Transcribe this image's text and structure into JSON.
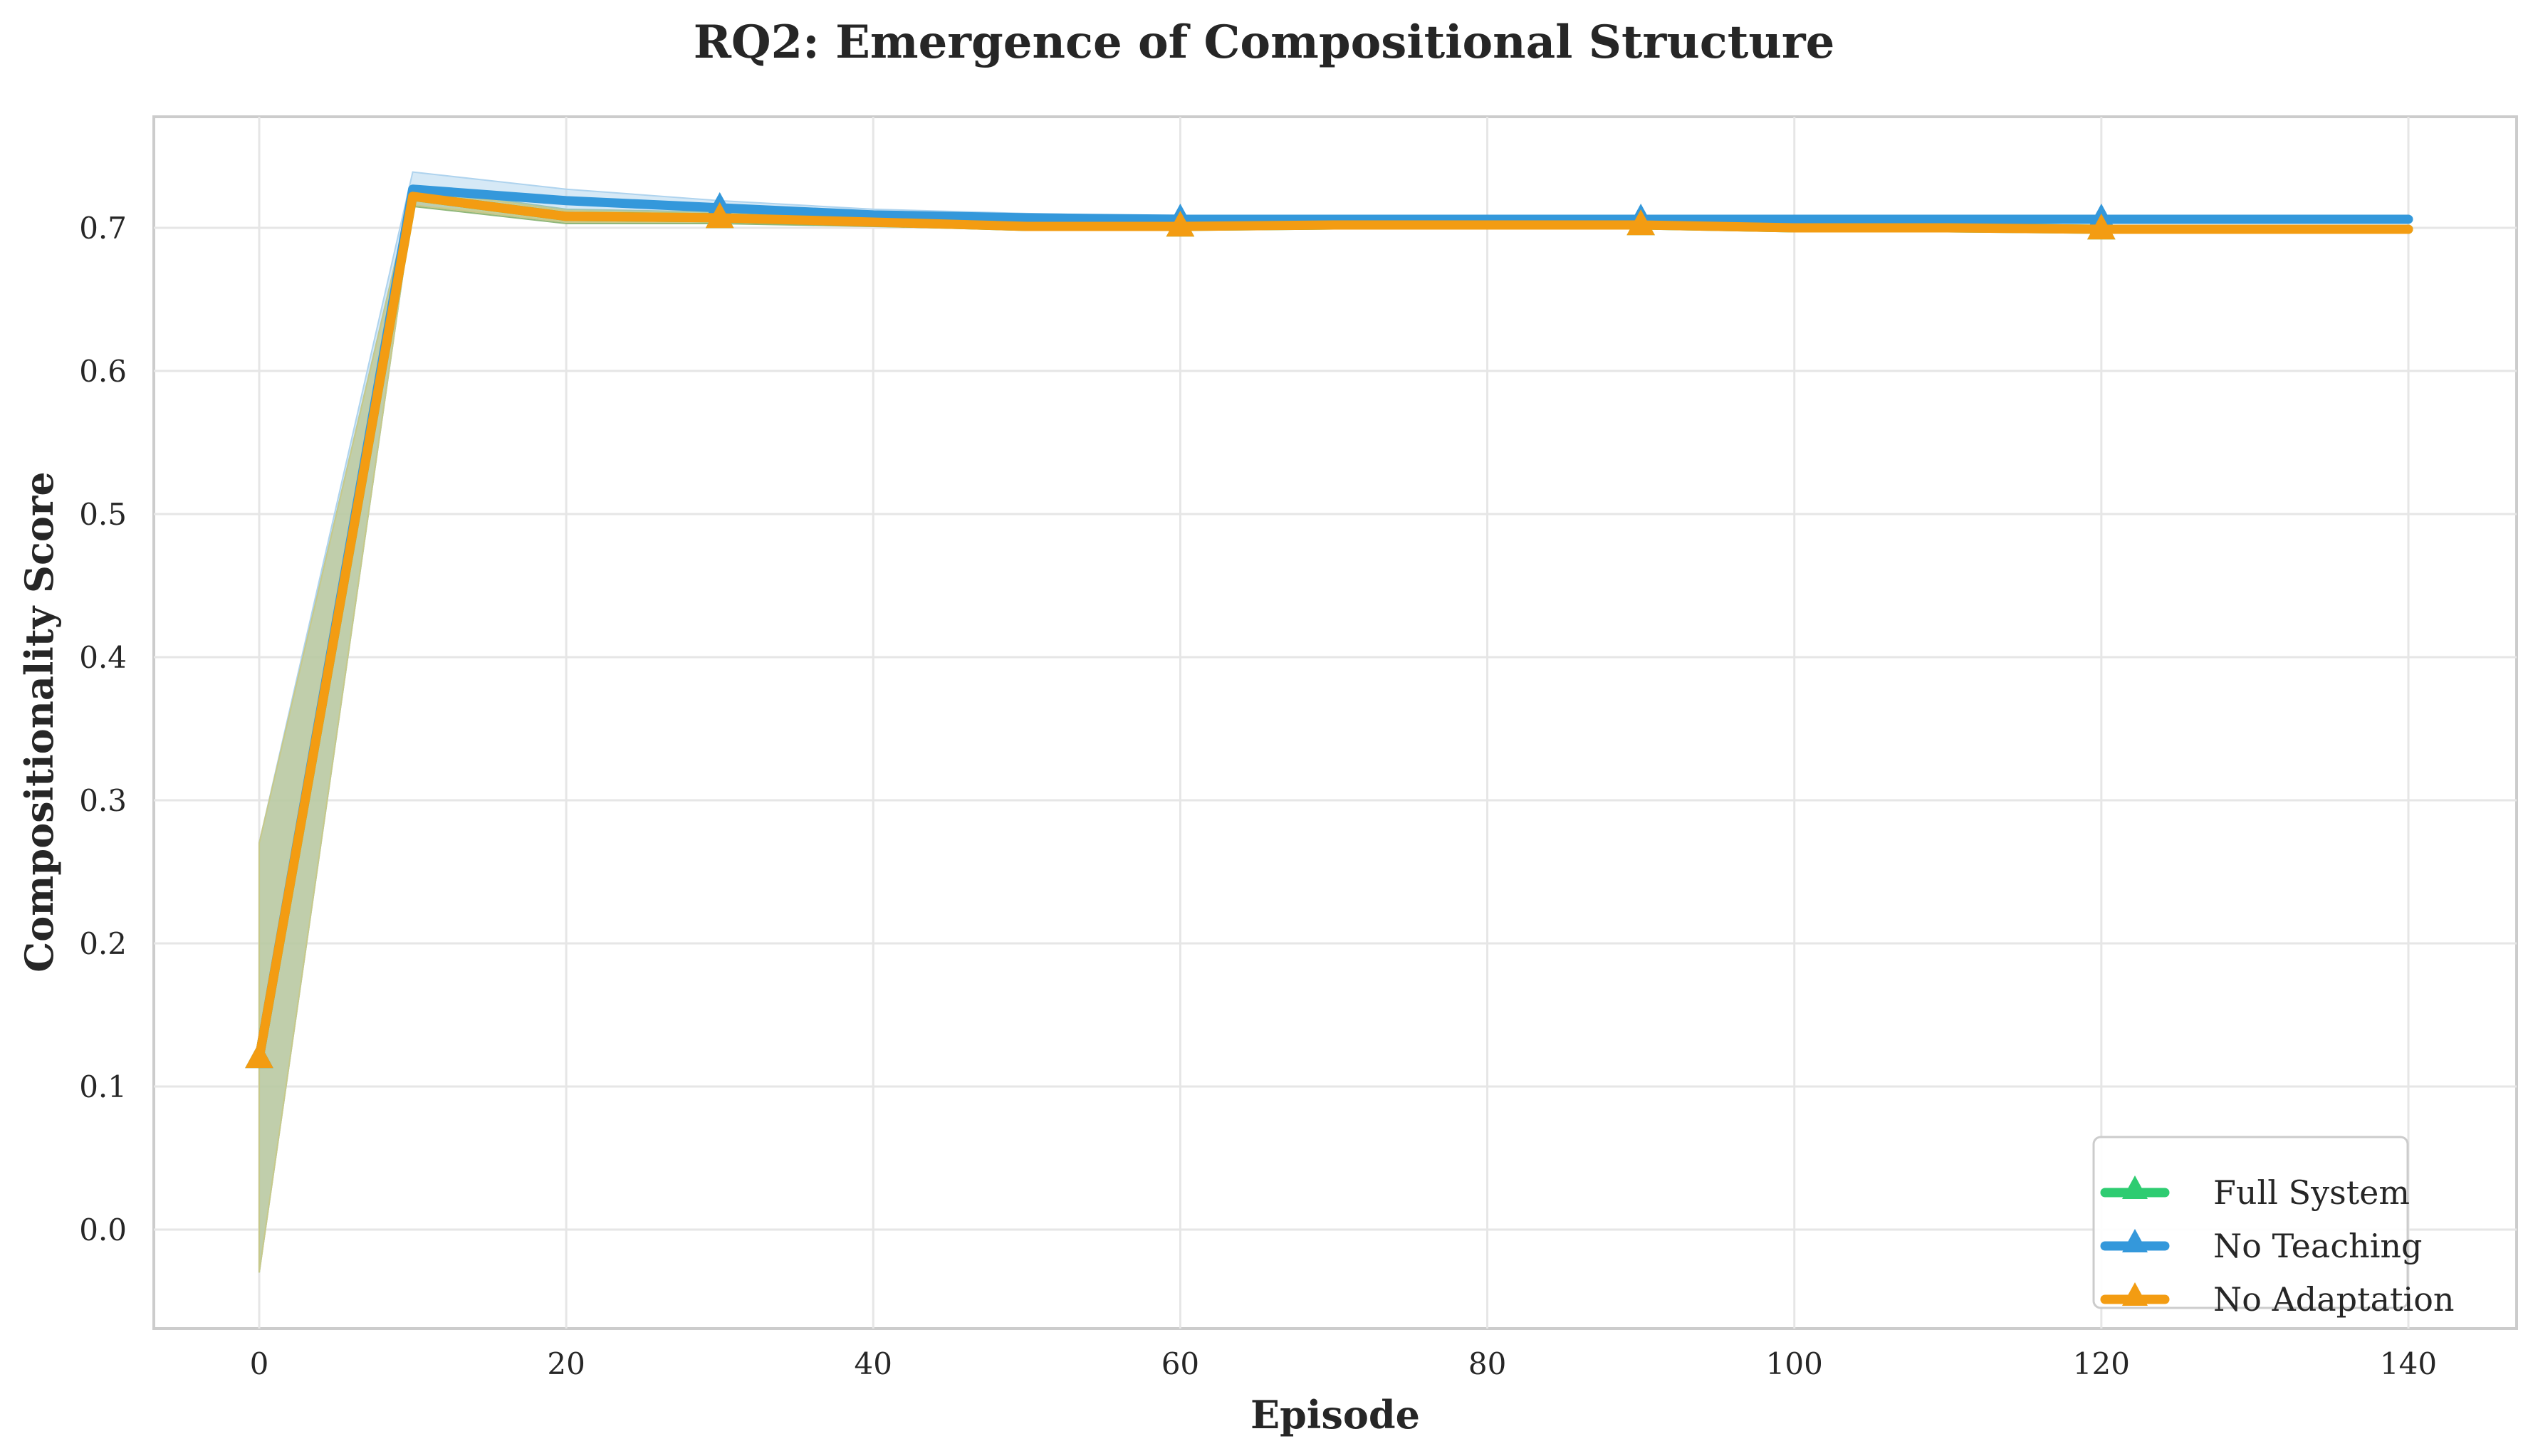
{
  "chart_data": {
    "type": "line",
    "title": "RQ2: Emergence of Compositional Structure",
    "xlabel": "Episode",
    "ylabel": "Compositionality Score",
    "xlim": [
      -7,
      147
    ],
    "ylim": [
      -0.067,
      0.78
    ],
    "x_ticks": [
      0,
      20,
      40,
      60,
      80,
      100,
      120,
      140
    ],
    "y_ticks": [
      0.0,
      0.1,
      0.2,
      0.3,
      0.4,
      0.5,
      0.6,
      0.7
    ],
    "y_tick_labels": [
      "0.0",
      "0.1",
      "0.2",
      "0.3",
      "0.4",
      "0.5",
      "0.6",
      "0.7"
    ],
    "grid": true,
    "legend_position": "lower right",
    "x": [
      0,
      10,
      20,
      30,
      40,
      50,
      60,
      70,
      80,
      90,
      100,
      110,
      120,
      130,
      140
    ],
    "series": [
      {
        "name": "Full System",
        "color": "#2ecc71",
        "band_color": "#8fb77a",
        "marker": "triangle-up",
        "marker_every": [
          0,
          30,
          60,
          90,
          120
        ],
        "values": [
          0.12,
          0.722,
          0.708,
          0.707,
          0.704,
          0.701,
          0.701,
          0.702,
          0.702,
          0.702,
          0.7,
          0.7,
          0.699,
          0.699,
          0.699
        ],
        "lower": [
          -0.03,
          0.715,
          0.703,
          0.703,
          0.701,
          0.699,
          0.699,
          0.7,
          0.7,
          0.7,
          0.698,
          0.698,
          0.697,
          0.697,
          0.697
        ],
        "upper": [
          0.27,
          0.728,
          0.713,
          0.711,
          0.707,
          0.703,
          0.703,
          0.704,
          0.704,
          0.704,
          0.702,
          0.702,
          0.701,
          0.701,
          0.701
        ]
      },
      {
        "name": "No Teaching",
        "color": "#3498db",
        "band_color": "#aed3ee",
        "marker": "triangle-up",
        "marker_every": [
          0,
          30,
          60,
          90,
          120
        ],
        "values": [
          0.12,
          0.727,
          0.719,
          0.714,
          0.709,
          0.707,
          0.706,
          0.706,
          0.706,
          0.706,
          0.706,
          0.706,
          0.706,
          0.706,
          0.706
        ],
        "lower": [
          -0.03,
          0.716,
          0.711,
          0.708,
          0.705,
          0.704,
          0.704,
          0.704,
          0.704,
          0.704,
          0.704,
          0.704,
          0.704,
          0.704,
          0.704
        ],
        "upper": [
          0.27,
          0.739,
          0.727,
          0.719,
          0.713,
          0.71,
          0.708,
          0.708,
          0.708,
          0.708,
          0.708,
          0.708,
          0.708,
          0.708,
          0.708
        ]
      },
      {
        "name": "No Adaptation",
        "color": "#f39c12",
        "band_color": "#c7c98a",
        "marker": "triangle-up",
        "marker_every": [
          0,
          30,
          60,
          90,
          120
        ],
        "values": [
          0.12,
          0.722,
          0.708,
          0.707,
          0.704,
          0.701,
          0.701,
          0.702,
          0.702,
          0.702,
          0.7,
          0.7,
          0.699,
          0.699,
          0.699
        ],
        "lower": [
          -0.03,
          0.716,
          0.704,
          0.704,
          0.702,
          0.699,
          0.699,
          0.7,
          0.7,
          0.7,
          0.698,
          0.698,
          0.697,
          0.697,
          0.697
        ],
        "upper": [
          0.27,
          0.727,
          0.712,
          0.71,
          0.706,
          0.703,
          0.703,
          0.704,
          0.704,
          0.704,
          0.702,
          0.702,
          0.701,
          0.701,
          0.701
        ]
      }
    ]
  }
}
